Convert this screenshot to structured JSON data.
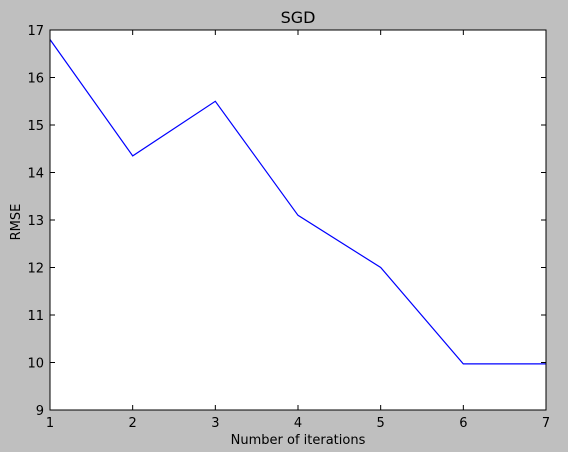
{
  "chart_data": {
    "type": "line",
    "title": "SGD",
    "xlabel": "Number of iterations",
    "ylabel": "RMSE",
    "xlim": [
      1,
      7
    ],
    "ylim": [
      9,
      17
    ],
    "xticks": [
      "1",
      "2",
      "3",
      "4",
      "5",
      "6",
      "7"
    ],
    "yticks": [
      "9",
      "10",
      "11",
      "12",
      "13",
      "14",
      "15",
      "16",
      "17"
    ],
    "grid": false,
    "series": [
      {
        "x": [
          1,
          2,
          3,
          4,
          5,
          6,
          7
        ],
        "values": [
          16.8,
          14.35,
          15.5,
          13.1,
          12.0,
          9.97,
          9.97
        ],
        "color": "#0000ff"
      }
    ]
  }
}
